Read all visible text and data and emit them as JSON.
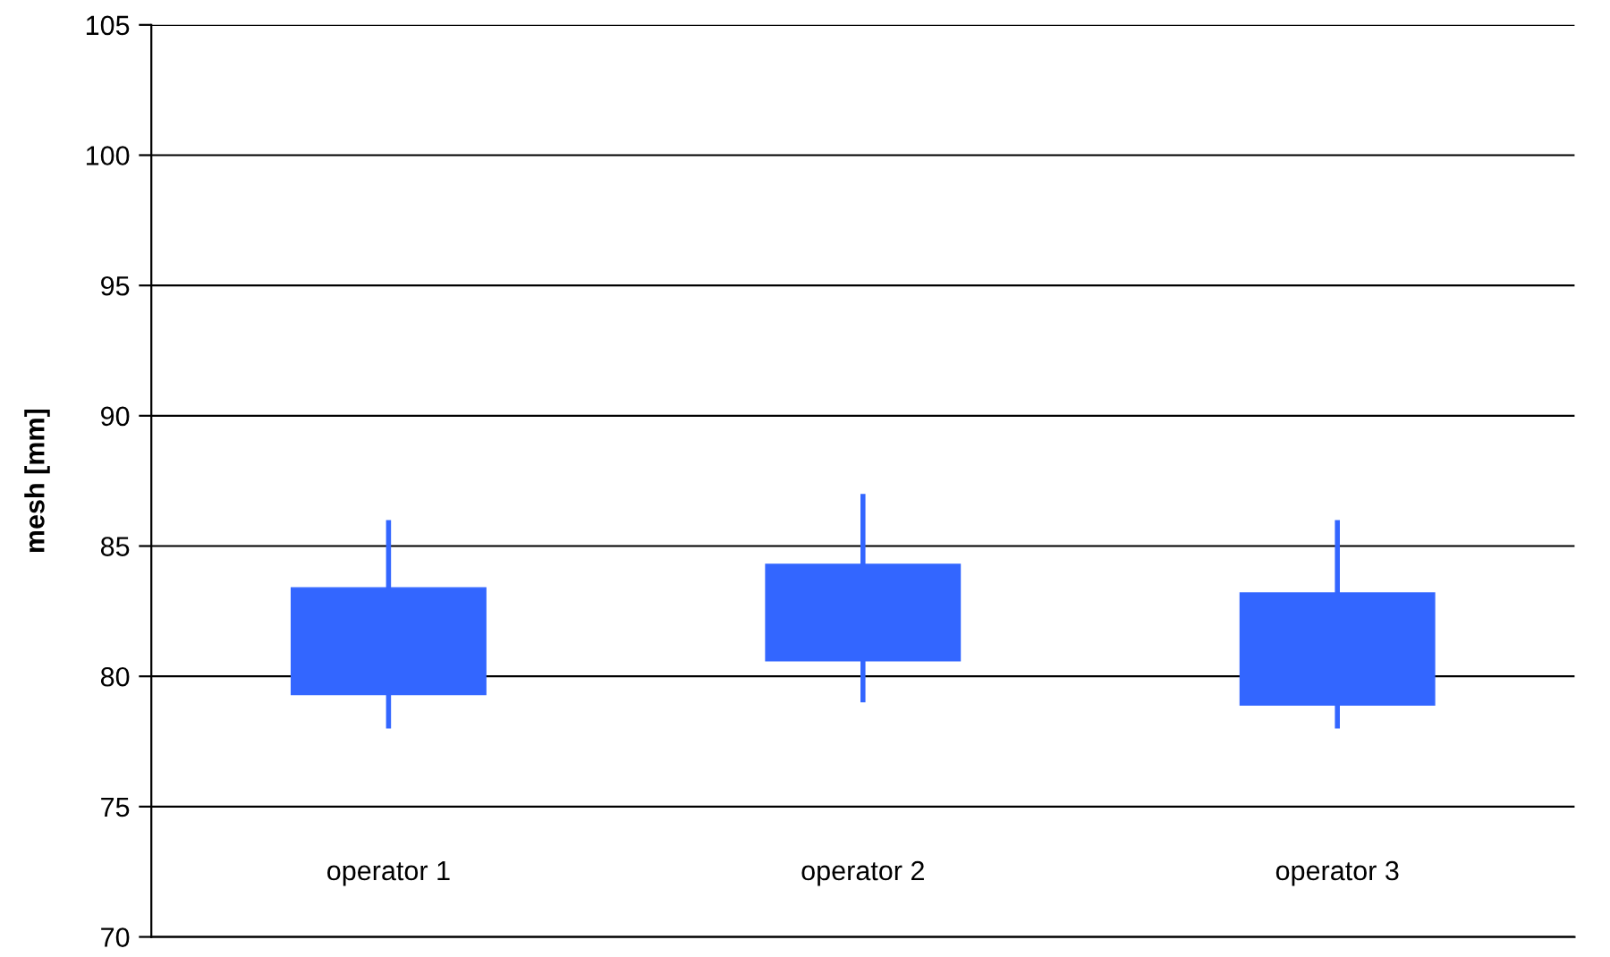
{
  "chart_data": {
    "type": "candlestick",
    "ylabel": "mesh [mm]",
    "categories": [
      "operator 1",
      "operator 2",
      "operator 3"
    ],
    "ohlc": [
      [
        79.3,
        86,
        78,
        83.4
      ],
      [
        80.6,
        87,
        79,
        84.3
      ],
      [
        78.9,
        86,
        78,
        83.2
      ]
    ],
    "color": "#3366ff",
    "ylim": [
      70,
      105
    ],
    "yticks": [
      70,
      75,
      80,
      85,
      90,
      95,
      100,
      105
    ],
    "grid": "y"
  }
}
